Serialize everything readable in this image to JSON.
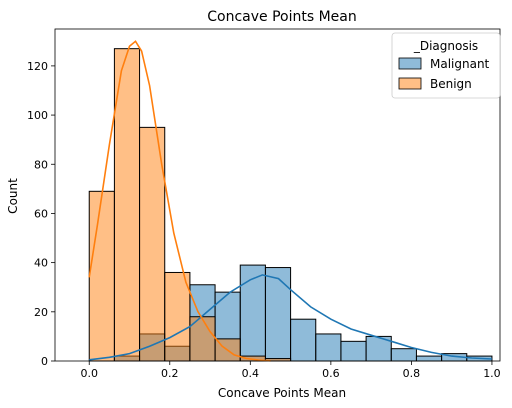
{
  "chart_data": {
    "type": "histogram",
    "title": "Concave Points Mean",
    "xlabel": "Concave Points Mean",
    "ylabel": "Count",
    "xlim": [
      -0.085,
      1.02
    ],
    "ylim": [
      0,
      135
    ],
    "xticks": [
      0.0,
      0.2,
      0.4,
      0.6,
      0.8,
      1.0
    ],
    "yticks": [
      0,
      20,
      40,
      60,
      80,
      100,
      120
    ],
    "bin_edges": [
      0.0,
      0.0625,
      0.125,
      0.1875,
      0.25,
      0.3125,
      0.375,
      0.4375,
      0.5,
      0.5625,
      0.625,
      0.6875,
      0.75,
      0.8125,
      0.875,
      0.9375,
      1.0
    ],
    "legend": {
      "title": "_Diagnosis",
      "placement": "top-right",
      "entries": [
        "Malignant",
        "Benign"
      ]
    },
    "series": [
      {
        "name": "Malignant",
        "color": "#1f77b4",
        "counts": [
          0,
          2,
          11,
          6,
          31,
          28,
          39,
          38,
          17,
          11,
          8,
          10,
          5,
          2,
          3,
          2
        ],
        "kde": [
          [
            0.0,
            0.5
          ],
          [
            0.05,
            1.5
          ],
          [
            0.1,
            3
          ],
          [
            0.15,
            6
          ],
          [
            0.2,
            9.5
          ],
          [
            0.25,
            14
          ],
          [
            0.3,
            21
          ],
          [
            0.35,
            28
          ],
          [
            0.4,
            33
          ],
          [
            0.43,
            35
          ],
          [
            0.47,
            33.5
          ],
          [
            0.5,
            29
          ],
          [
            0.55,
            22
          ],
          [
            0.6,
            17
          ],
          [
            0.65,
            13
          ],
          [
            0.7,
            10.5
          ],
          [
            0.75,
            8
          ],
          [
            0.8,
            5.5
          ],
          [
            0.85,
            3.5
          ],
          [
            0.9,
            2
          ],
          [
            0.95,
            1.2
          ],
          [
            1.0,
            0.8
          ]
        ]
      },
      {
        "name": "Benign",
        "color": "#ff7f0e",
        "counts": [
          69,
          127,
          95,
          36,
          18,
          9,
          2,
          1,
          0,
          0,
          0,
          0,
          0,
          0,
          0,
          0
        ],
        "kde": [
          [
            0.0,
            34
          ],
          [
            0.02,
            55
          ],
          [
            0.05,
            88
          ],
          [
            0.08,
            118
          ],
          [
            0.1,
            128
          ],
          [
            0.115,
            130
          ],
          [
            0.13,
            126
          ],
          [
            0.15,
            112
          ],
          [
            0.18,
            80
          ],
          [
            0.21,
            52
          ],
          [
            0.24,
            32
          ],
          [
            0.27,
            20
          ],
          [
            0.3,
            12
          ],
          [
            0.33,
            6
          ],
          [
            0.36,
            2.5
          ],
          [
            0.39,
            1
          ],
          [
            0.42,
            0.4
          ],
          [
            0.45,
            0.1
          ]
        ]
      }
    ]
  }
}
